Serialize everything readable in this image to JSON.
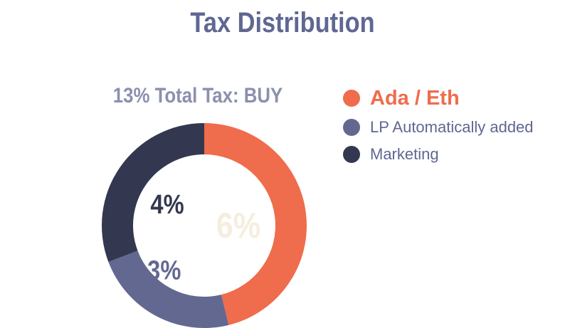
{
  "title": "Tax Distribution",
  "chart_data": {
    "type": "pie",
    "subtitle": "13% Total Tax: BUY",
    "donut": true,
    "legend_position": "right",
    "series": [
      {
        "name": "Ada / Eth",
        "value": 6,
        "label": "6%",
        "color": "#ef6c4c"
      },
      {
        "name": "LP Automatically added",
        "value": 3,
        "label": "3%",
        "color": "#636891"
      },
      {
        "name": "Marketing",
        "value": 4,
        "label": "4%",
        "color": "#333850"
      }
    ],
    "highlighted_series": "Ada / Eth"
  }
}
